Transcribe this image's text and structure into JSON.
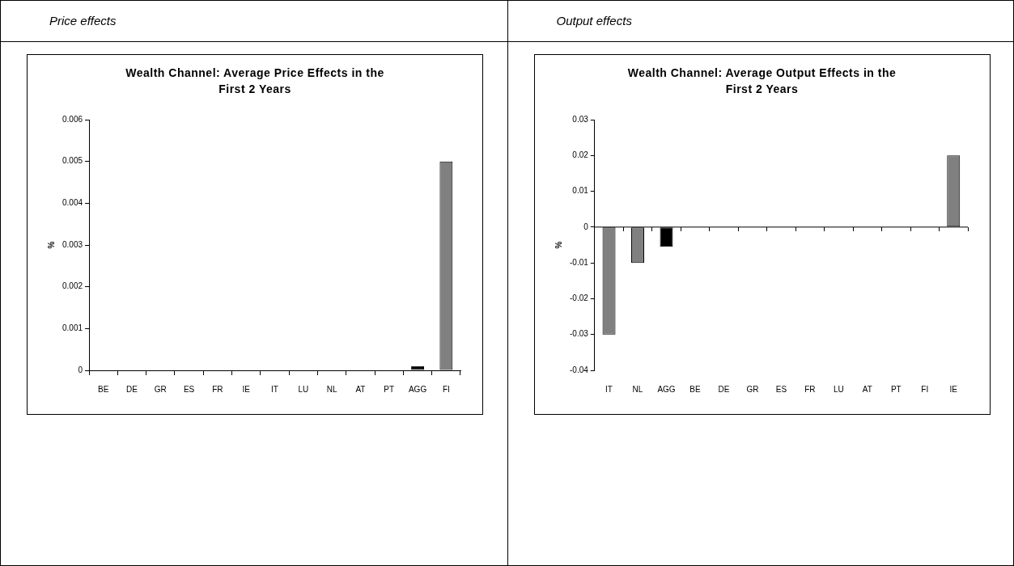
{
  "chart_data": [
    {
      "type": "bar",
      "subtitle": "Price effects",
      "title": "Wealth Channel: Average Price Effects in the First 2 Years",
      "ylabel": "%",
      "categories": [
        "BE",
        "DE",
        "GR",
        "ES",
        "FR",
        "IE",
        "IT",
        "LU",
        "NL",
        "AT",
        "PT",
        "AGG",
        "FI"
      ],
      "values": [
        0,
        0,
        0,
        0,
        0,
        0,
        0,
        0,
        0,
        0,
        0,
        0.0001,
        0.005
      ],
      "colors": [
        "#808080",
        "#808080",
        "#808080",
        "#808080",
        "#808080",
        "#808080",
        "#808080",
        "#808080",
        "#808080",
        "#808080",
        "#808080",
        "#000000",
        "#808080"
      ],
      "ylim": [
        0,
        0.006
      ],
      "yticks": [
        0,
        0.001,
        0.002,
        0.003,
        0.004,
        0.005,
        0.006
      ],
      "grid": false,
      "legend": false
    },
    {
      "type": "bar",
      "subtitle": "Output effects",
      "title": "Wealth Channel: Average Output Effects in the First 2 Years",
      "ylabel": "%",
      "categories": [
        "IT",
        "NL",
        "AGG",
        "BE",
        "DE",
        "GR",
        "ES",
        "FR",
        "LU",
        "AT",
        "PT",
        "FI",
        "IE"
      ],
      "values": [
        -0.03,
        -0.01,
        -0.0055,
        0,
        0,
        0,
        0,
        0,
        0,
        0,
        0,
        0,
        0.02
      ],
      "colors": [
        "#808080",
        "#808080",
        "#000000",
        "#808080",
        "#808080",
        "#808080",
        "#808080",
        "#808080",
        "#808080",
        "#808080",
        "#808080",
        "#808080",
        "#808080"
      ],
      "ylim": [
        -0.04,
        0.03
      ],
      "yticks": [
        -0.04,
        -0.03,
        -0.02,
        -0.01,
        0,
        0.01,
        0.02,
        0.03
      ],
      "grid": false,
      "legend": false,
      "ref_lines": [
        {
          "axis": "y",
          "value": 0,
          "color": "#000000"
        }
      ]
    }
  ]
}
